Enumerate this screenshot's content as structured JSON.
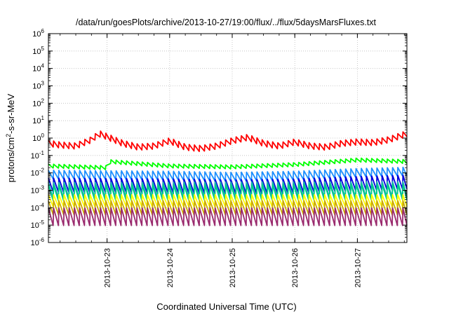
{
  "chart_data": {
    "type": "line",
    "title": "/data/run/goesPlots/archive/2013-10-27/19:00/flux/../flux/5daysMarsFluxes.txt",
    "xlabel": "Coordinated Universal Time (UTC)",
    "ylabel": {
      "prefix": "protons/cm",
      "sup": "2",
      "suffix": "-s-sr-MeV"
    },
    "x_scale": "time",
    "y_scale": "log",
    "xlim": [
      "2013-10-22T01:30",
      "2013-10-27T19:00"
    ],
    "ylim": [
      1e-06,
      1000000.0
    ],
    "x_ticks": [
      "2013-10-23",
      "2013-10-24",
      "2013-10-25",
      "2013-10-26",
      "2013-10-27"
    ],
    "y_ticks": [
      {
        "base": "10",
        "exp": "6"
      },
      {
        "base": "10",
        "exp": "5"
      },
      {
        "base": "10",
        "exp": "4"
      },
      {
        "base": "10",
        "exp": "3"
      },
      {
        "base": "10",
        "exp": "2"
      },
      {
        "base": "10",
        "exp": "1"
      },
      {
        "base": "10",
        "exp": "0"
      },
      {
        "base": "10",
        "exp": "-1"
      },
      {
        "base": "10",
        "exp": "-2"
      },
      {
        "base": "10",
        "exp": "-3"
      },
      {
        "base": "10",
        "exp": "-4"
      },
      {
        "base": "10",
        "exp": "-5"
      },
      {
        "base": "10",
        "exp": "-6"
      }
    ],
    "grid": true,
    "legend": "none",
    "sawtooth_period_hours": 2,
    "series": [
      {
        "color": "#ff0000",
        "swing": 0.35,
        "x": [
          "2013-10-22T01:30",
          "2013-10-22T06:00",
          "2013-10-22T12:00",
          "2013-10-22T18:00",
          "2013-10-22T21:00",
          "2013-10-23T00:00",
          "2013-10-23T06:00",
          "2013-10-23T12:00",
          "2013-10-23T18:00",
          "2013-10-24T00:00",
          "2013-10-24T06:00",
          "2013-10-24T12:00",
          "2013-10-24T18:00",
          "2013-10-25T00:00",
          "2013-10-25T06:00",
          "2013-10-25T12:00",
          "2013-10-25T18:00",
          "2013-10-26T00:00",
          "2013-10-26T06:00",
          "2013-10-26T12:00",
          "2013-10-26T18:00",
          "2013-10-27T00:00",
          "2013-10-27T06:00",
          "2013-10-27T12:00",
          "2013-10-27T19:00"
        ],
        "y": [
          0.5,
          0.4,
          0.35,
          0.8,
          1.8,
          1.2,
          0.5,
          0.3,
          0.35,
          0.7,
          0.3,
          0.25,
          0.35,
          0.7,
          1.1,
          0.5,
          0.35,
          0.6,
          0.35,
          0.3,
          0.5,
          0.6,
          0.55,
          0.8,
          1.8
        ]
      },
      {
        "color": "#00ff00",
        "swing": 0.22,
        "x": [
          "2013-10-22T01:30",
          "2013-10-23T00:00",
          "2013-10-23T01:00",
          "2013-10-24T00:00",
          "2013-10-25T00:00",
          "2013-10-26T00:00",
          "2013-10-27T00:00",
          "2013-10-27T19:00"
        ],
        "y": [
          0.025,
          0.02,
          0.045,
          0.025,
          0.022,
          0.03,
          0.055,
          0.045
        ]
      },
      {
        "color": "#1e90ff",
        "swing": 0.5,
        "x": [
          "2013-10-22T01:30",
          "2013-10-24T00:00",
          "2013-10-25T00:00",
          "2013-10-26T00:00",
          "2013-10-27T00:00",
          "2013-10-27T19:00"
        ],
        "y": [
          0.008,
          0.007,
          0.006,
          0.007,
          0.01,
          0.012
        ]
      },
      {
        "color": "#0000dd",
        "swing": 0.8,
        "x": [
          "2013-10-22T01:30",
          "2013-10-24T00:00",
          "2013-10-25T00:00",
          "2013-10-26T00:00",
          "2013-10-27T00:00",
          "2013-10-27T19:00"
        ],
        "y": [
          0.002,
          0.0018,
          0.0016,
          0.0018,
          0.0025,
          0.003
        ]
      },
      {
        "color": "#1ab2b2",
        "swing": 0.9,
        "x": [
          "2013-10-22T01:30",
          "2013-10-27T19:00"
        ],
        "y": [
          0.001,
          0.0011
        ]
      },
      {
        "color": "#00cc88",
        "swing": 0.9,
        "x": [
          "2013-10-22T01:30",
          "2013-10-27T19:00"
        ],
        "y": [
          0.0007,
          0.0008
        ]
      },
      {
        "color": "#ffff00",
        "swing": 0.7,
        "x": [
          "2013-10-22T01:30",
          "2013-10-27T19:00"
        ],
        "y": [
          0.00025,
          0.00025
        ]
      },
      {
        "color": "#ccaa00",
        "swing": 0.8,
        "x": [
          "2013-10-22T01:30",
          "2013-10-27T19:00"
        ],
        "y": [
          0.0001,
          0.0001
        ]
      },
      {
        "color": "#9a2b6e",
        "swing": 1.0,
        "x": [
          "2013-10-22T01:30",
          "2013-10-27T19:00"
        ],
        "y": [
          3e-05,
          3e-05
        ]
      }
    ]
  }
}
